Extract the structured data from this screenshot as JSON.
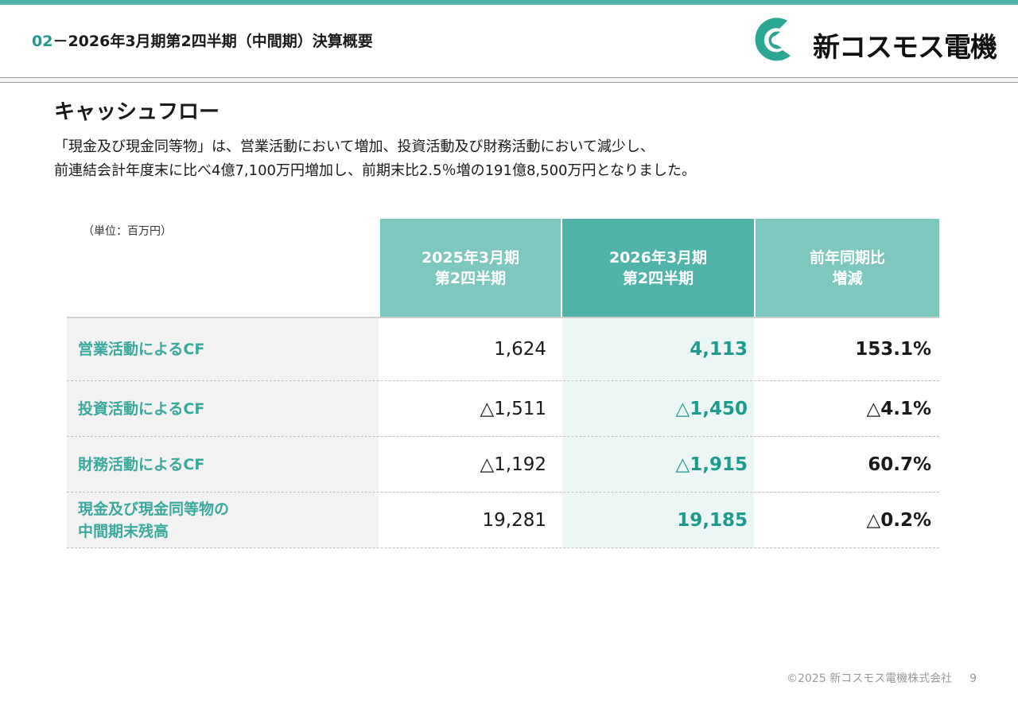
{
  "header": {
    "section_number": "02",
    "title": "－2026年3月期第2四半期（中間期）決算概要",
    "brand_name": "新コスモス電機"
  },
  "section_title": "キャッシュフロー",
  "description": {
    "line1": "「現金及び現金同等物」は、営業活動において増加、投資活動及び財務活動において減少し、",
    "line2": "前連結会計年度末に比べ4億7,100万円増加し、前期末比2.5％増の191億8,500万円となりました。"
  },
  "table": {
    "unit": "（単位：百万円）",
    "columns": [
      {
        "line1": "2025年3月期",
        "line2": "第2四半期"
      },
      {
        "line1": "2026年3月期",
        "line2": "第2四半期"
      },
      {
        "line1": "前年同期比",
        "line2": "増減"
      }
    ],
    "rows": [
      {
        "label": "営業活動によるCF",
        "prev": "1,624",
        "current": "4,113",
        "change": "153.1%"
      },
      {
        "label": "投資活動によるCF",
        "prev": "△1,511",
        "current": "△1,450",
        "change": "△4.1%"
      },
      {
        "label": "財務活動によるCF",
        "prev": "△1,192",
        "current": "△1,915",
        "change": "60.7%"
      },
      {
        "label": "現金及び現金同等物の\n中間期末残高",
        "prev": "19,281",
        "current": "19,185",
        "change": "△0.2%"
      }
    ]
  },
  "footer": {
    "copyright": "©2025 新コスモス電機株式会社",
    "page": "9"
  },
  "colors": {
    "accent": "#4fb3a9",
    "accent_light": "#7ec7bf",
    "accent_text": "#1f9a8f",
    "logo_green": "#2aa693"
  },
  "icons": {
    "logo": "company-logo-icon"
  }
}
